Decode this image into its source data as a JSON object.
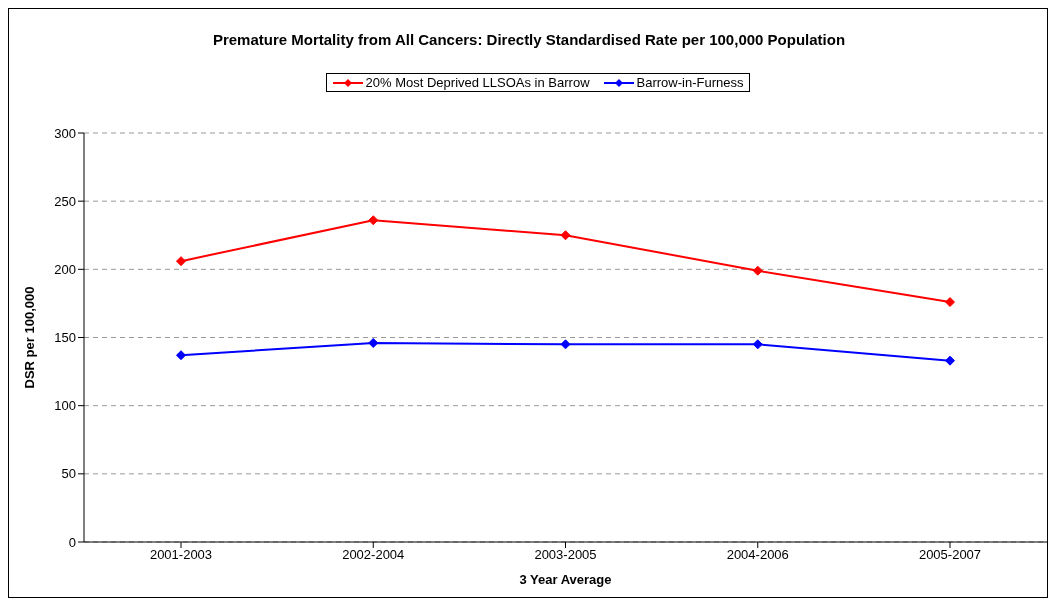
{
  "chart_data": {
    "type": "line",
    "title": "Premature Mortality from All Cancers: Directly Standardised Rate per 100,000 Population",
    "xlabel": "3 Year Average",
    "ylabel": "DSR per 100,000",
    "categories": [
      "2001-2003",
      "2002-2004",
      "2003-2005",
      "2004-2006",
      "2005-2007"
    ],
    "series": [
      {
        "name": "Barrow-in-Furness",
        "color": "#0000ff",
        "values": [
          137,
          146,
          145,
          145,
          133
        ]
      },
      {
        "name": "20% Most Deprived LLSOAs in Barrow",
        "color": "#ff0000",
        "values": [
          206,
          236,
          225,
          199,
          176
        ]
      }
    ],
    "ylim": [
      0,
      300
    ],
    "yticks": [
      0,
      50,
      100,
      150,
      200,
      250,
      300
    ],
    "grid": "y",
    "legend": "top",
    "marker": "diamond",
    "line_style": "solid"
  }
}
